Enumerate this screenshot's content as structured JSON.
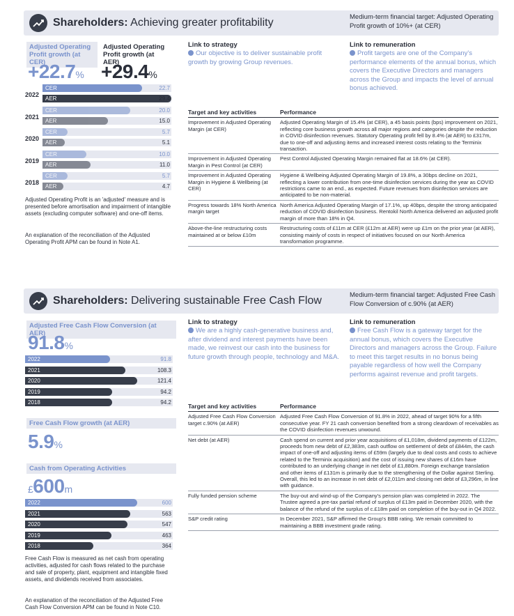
{
  "sec1": {
    "title_bold": "Shareholders:",
    "title_rest": " Achieving greater profitability",
    "target": "Medium-term financial target: Adjusted Operating Profit growth of 10%+ (at CER)",
    "cer_label": "Adjusted Operating Profit growth (at CER)",
    "aer_label": "Adjusted Operating Profit growth (at AER)",
    "cer_big": "+22.7",
    "aer_big": "+29.4",
    "unit": "%",
    "years": [
      "2022",
      "2021",
      "2020",
      "2019",
      "2018"
    ],
    "cer_tag": "CER",
    "aer_tag": "AER",
    "cer_vals": [
      "22.7",
      "20.0",
      "5.7",
      "10.0",
      "5.7"
    ],
    "aer_vals": [
      "29.4",
      "15.0",
      "5.1",
      "11.0",
      "4.7"
    ],
    "note1": "Adjusted Operating Profit is an 'adjusted' measure and is presented before amortisation and impairment of intangible assets (excluding computer software) and one-off items.",
    "note2": "An explanation of the reconciliation of the Adjusted Operating Profit APM can be found in Note A1.",
    "link_strategy_h": "Link to strategy",
    "link_strategy": "Our objective is to deliver sustainable profit growth by growing Group revenues.",
    "link_rem_h": "Link to remuneration",
    "link_rem": "Profit targets are one of the Company's performance elements of the annual bonus, which covers the Executive Directors and managers across the Group and impacts the level of annual bonus achieved.",
    "th1": "Target and key activities",
    "th2": "Performance",
    "rows": [
      [
        "Improvement in Adjusted Operating Margin (at CER)",
        "Adjusted Operating Margin of 15.4% (at CER), a 45 basis points (bps) improvement on 2021, reflecting core business growth across all major regions and categories despite the reduction in COVID disinfection revenues. Statutory Operating profit fell by 8.4% (at AER) to £317m, due to one-off and adjusting items and increased interest costs relating to the Terminix transaction."
      ],
      [
        "Improvement in Adjusted Operating Margin in Pest Control (at CER)",
        "Pest Control Adjusted Operating Margin remained flat at 18.6% (at CER)."
      ],
      [
        "Improvement in Adjusted Operating Margin in Hygiene & Wellbeing (at CER)",
        "Hygiene & Wellbeing Adjusted Operating Margin of 19.8%, a 30bps decline on 2021, reflecting a lower contribution from one-time disinfection services during the year as COVID restrictions came to an end., as expected. Future revenues from disinfection services are anticipated to be non-material."
      ],
      [
        "Progress towards 18% North America margin target",
        "North America Adjusted Operating Margin of 17.1%, up 40bps, despite the strong anticipated reduction of COVID disinfection business. Rentokil North America delivered an adjusted profit margin of more than 18% in Q4."
      ],
      [
        "Above-the-line restructuring costs maintained at or below £10m",
        "Restructuring costs of £11m at CER (£12m at AER) were up £1m on the prior year (at AER), consisting mainly of costs in respect of initiatives focused on our North America transformation programme."
      ]
    ]
  },
  "sec2": {
    "title_bold": "Shareholders:",
    "title_rest": " Delivering sustainable Free Cash Flow",
    "target": "Medium-term financial target: Adjusted Free Cash Flow Conversion of c.90% (at AER)",
    "m1_label": "Adjusted Free Cash Flow Conversion (at AER)",
    "m1_big": "91.8",
    "unit": "%",
    "m1_years": [
      "2022",
      "2021",
      "2020",
      "2019",
      "2018"
    ],
    "m1_vals": [
      "91.8",
      "108.3",
      "121.4",
      "94.2",
      "94.2"
    ],
    "m2_label": "Free Cash Flow growth (at AER)",
    "m2_big": "5.9",
    "m3_label": "Cash from Operating Activities",
    "m3_pre": "£",
    "m3_big": "600",
    "m3_unit": "m",
    "m3_vals": [
      "600",
      "563",
      "547",
      "463",
      "364"
    ],
    "note1": "Free Cash Flow is measured as net cash from operating activities, adjusted for cash flows related to the purchase and sale of property, plant, equipment and intangible fixed assets, and dividends received from associates.",
    "note2": "An explanation of the reconciliation of the Adjusted Free Cash Flow Conversion APM can be found in Note C10.",
    "link_strategy_h": "Link to strategy",
    "link_strategy": "We are a highly cash-generative business and, after dividend and interest payments have been made, we reinvest our cash into the business for future growth through people, technology and M&A.",
    "link_rem_h": "Link to remuneration",
    "link_rem": "Free Cash Flow is a gateway target for the annual bonus, which covers the Executive Directors and managers across the Group. Failure to meet this target results in no bonus being payable regardless of how well the Company performs against revenue and profit targets.",
    "th1": "Target and key activities",
    "th2": "Performance",
    "rows": [
      [
        "Adjusted Free Cash Flow Conversion target c.90% (at AER)",
        "Adjusted Free Cash Flow Conversion of 91.8% in 2022, ahead of target 90% for a fifth consecutive year. FY 21 cash conversion benefited from a strong cleardown of receivables as the COVID disinfection revenues unwound."
      ],
      [
        "Net debt (at AER)",
        "Cash spend on current and prior year acquisitions of £1,018m, dividend payments of £122m, proceeds from new debt of £2,383m, cash outflow on settlement of debt of £844m, the cash impact of one-off and adjusting items of £59m (largely due to deal costs and costs to achieve related to the Terminix acquisition) and the cost of issuing new shares of £16m have contributed to an underlying change in net debt of £1,880m. Foreign exchange translation and other items of £131m is primarily due to the strengthening of the Dollar against Sterling. Overall, this led to an increase in net debt of £2,011m and closing net debt of £3,296m, in line with guidance."
      ],
      [
        "Fully funded pension scheme",
        "The buy-out and wind-up of the Company's pension plan was completed in 2022. The Trustee agreed a pre-tax partial refund of surplus of £13m paid in December 2020, with the balance of the refund of the surplus of c.£18m paid on completion of the buy-out in Q4 2022."
      ],
      [
        "S&P credit rating",
        "In December 2021, S&P affirmed the Group's BBB rating. We remain committed to maintaining a BBB investment grade rating."
      ]
    ]
  }
}
